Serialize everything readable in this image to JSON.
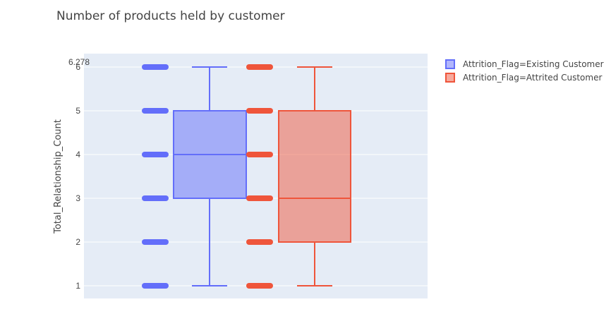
{
  "chart_data": {
    "type": "box",
    "title": "Number of products held by customer",
    "ylabel": "Total_Relationship_Count",
    "xlabel": "",
    "ylim": [
      0.75,
      6.0
    ],
    "yticks": [
      "1",
      "2",
      "3",
      "4",
      "5",
      "6"
    ],
    "ymax_label": "6.278",
    "grid": true,
    "legend_position": "top-right",
    "series": [
      {
        "name": "Attrition_Flag=Existing Customer",
        "color": "#636efa",
        "min": 1,
        "q1": 3,
        "median": 4,
        "q3": 5,
        "max": 6,
        "points": [
          1,
          2,
          3,
          4,
          5,
          6
        ]
      },
      {
        "name": "Attrition_Flag=Attrited Customer",
        "color": "#ef553b",
        "min": 1,
        "q1": 2,
        "median": 3,
        "q3": 5,
        "max": 6,
        "points": [
          1,
          2,
          3,
          4,
          5,
          6
        ]
      }
    ]
  }
}
